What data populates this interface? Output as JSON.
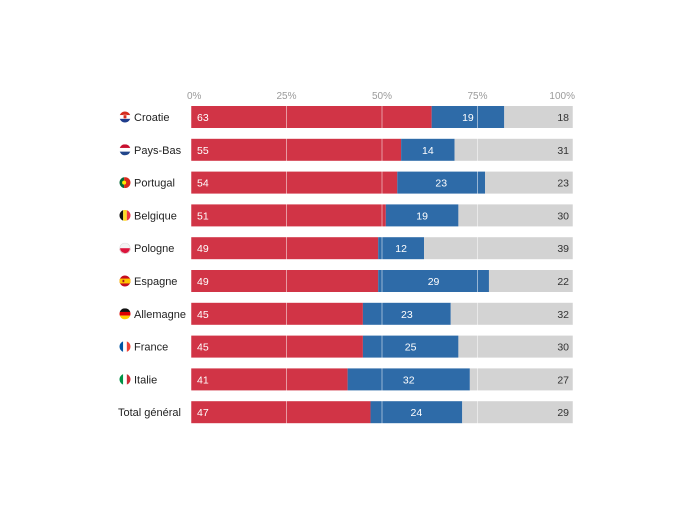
{
  "chart_data": {
    "type": "bar",
    "orientation": "horizontal",
    "stacked": true,
    "percent_stacked": true,
    "title": "",
    "xlabel": "",
    "ylabel": "",
    "xlim": [
      0,
      100
    ],
    "x_ticks": [
      "0%",
      "25%",
      "50%",
      "75%",
      "100%"
    ],
    "x_tick_values": [
      0,
      25,
      50,
      75,
      100
    ],
    "grid": true,
    "categories": [
      "Croatie",
      "Pays-Bas",
      "Portugal",
      "Belgique",
      "Pologne",
      "Espagne",
      "Allemagne",
      "France",
      "Italie",
      "Total général"
    ],
    "category_flags": [
      "croatia-flag-icon",
      "netherlands-flag-icon",
      "portugal-flag-icon",
      "belgium-flag-icon",
      "poland-flag-icon",
      "spain-flag-icon",
      "germany-flag-icon",
      "france-flag-icon",
      "italy-flag-icon",
      ""
    ],
    "series": [
      {
        "name": "red",
        "color": "#d13446",
        "values": [
          63,
          55,
          54,
          51,
          49,
          49,
          45,
          45,
          41,
          47
        ]
      },
      {
        "name": "blue",
        "color": "#2e6ba8",
        "values": [
          19,
          14,
          23,
          19,
          12,
          29,
          23,
          25,
          32,
          24
        ]
      },
      {
        "name": "grey",
        "color": "#d3d3d3",
        "values": [
          18,
          31,
          23,
          30,
          39,
          22,
          32,
          30,
          27,
          29
        ]
      }
    ]
  }
}
